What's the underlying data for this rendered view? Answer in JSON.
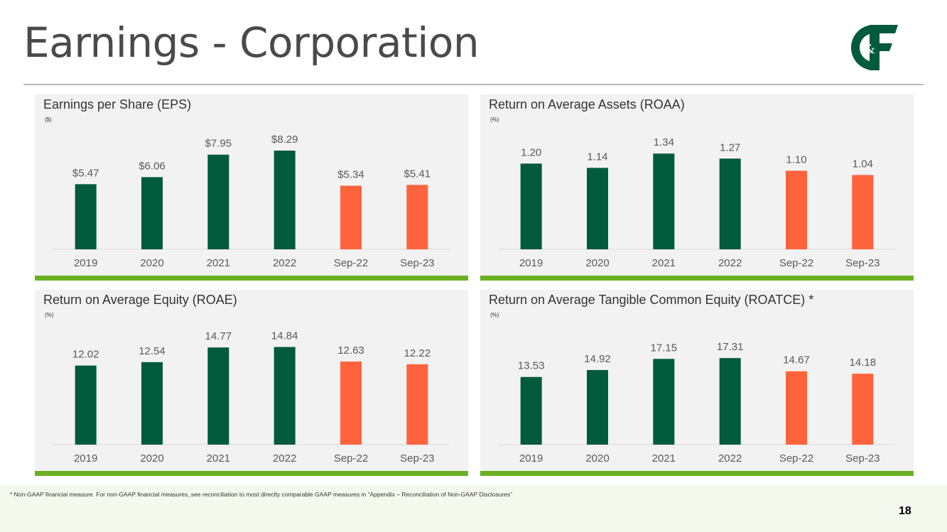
{
  "page": {
    "title": "Earnings - Corporation",
    "footnote": "* Non-GAAP financial measure.  For non-GAAP financial measures, see reconciliation to most directly comparable GAAP measures in “Appendix – Reconciliation of Non-GAAP Disclosures”",
    "page_number": "18",
    "logo_text": "C&F"
  },
  "colors": {
    "historical": "#005a3c",
    "interim": "#ff633b",
    "accent_green": "#6ab023",
    "panel_bg": "#f2f2f2"
  },
  "chart_data": [
    {
      "type": "bar",
      "title": "Earnings per Share (EPS)",
      "unit_label": "($)",
      "categories": [
        "2019",
        "2020",
        "2021",
        "2022",
        "Sep-22",
        "Sep-23"
      ],
      "values": [
        5.47,
        6.06,
        7.95,
        8.29,
        5.34,
        5.41
      ],
      "data_labels": [
        "$5.47",
        "$6.06",
        "$7.95",
        "$8.29",
        "$5.34",
        "$5.41"
      ],
      "series_colors": [
        "historical",
        "historical",
        "historical",
        "historical",
        "interim",
        "interim"
      ],
      "ylim": [
        0,
        10.5
      ]
    },
    {
      "type": "bar",
      "title": "Return on Average Assets (ROAA)",
      "unit_label": "(%)",
      "categories": [
        "2019",
        "2020",
        "2021",
        "2022",
        "Sep-22",
        "Sep-23"
      ],
      "values": [
        1.2,
        1.14,
        1.34,
        1.27,
        1.1,
        1.04
      ],
      "data_labels": [
        "1.20",
        "1.14",
        "1.34",
        "1.27",
        "1.10",
        "1.04"
      ],
      "series_colors": [
        "historical",
        "historical",
        "historical",
        "historical",
        "interim",
        "interim"
      ],
      "ylim": [
        0,
        1.75
      ]
    },
    {
      "type": "bar",
      "title": "Return on Average Equity (ROAE)",
      "unit_label": "(%)",
      "categories": [
        "2019",
        "2020",
        "2021",
        "2022",
        "Sep-22",
        "Sep-23"
      ],
      "values": [
        12.02,
        12.54,
        14.77,
        14.84,
        12.63,
        12.22
      ],
      "data_labels": [
        "12.02",
        "12.54",
        "14.77",
        "14.84",
        "12.63",
        "12.22"
      ],
      "series_colors": [
        "historical",
        "historical",
        "historical",
        "historical",
        "interim",
        "interim"
      ],
      "ylim": [
        0,
        19.0
      ]
    },
    {
      "type": "bar",
      "title": "Return on Average Tangible Common Equity (ROATCE) *",
      "unit_label": "(%)",
      "categories": [
        "2019",
        "2020",
        "2021",
        "2022",
        "Sep-22",
        "Sep-23"
      ],
      "values": [
        13.53,
        14.92,
        17.15,
        17.31,
        14.67,
        14.18
      ],
      "data_labels": [
        "13.53",
        "14.92",
        "17.15",
        "17.31",
        "14.67",
        "14.18"
      ],
      "series_colors": [
        "historical",
        "historical",
        "historical",
        "historical",
        "interim",
        "interim"
      ],
      "ylim": [
        0,
        25.0
      ]
    }
  ]
}
